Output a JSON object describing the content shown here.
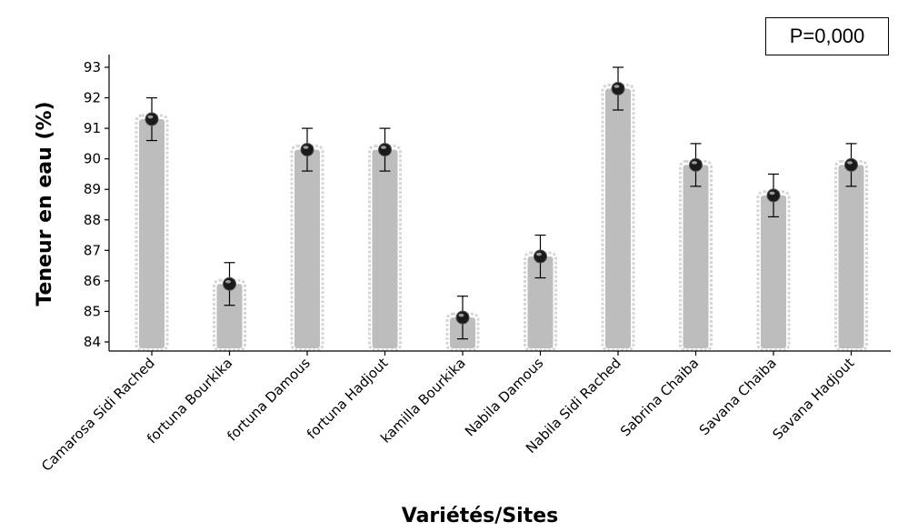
{
  "annotation": {
    "p_value": "P=0,000"
  },
  "chart_data": {
    "type": "bar",
    "title": "",
    "xlabel": "Variétés/Sites",
    "ylabel": "Teneur en eau (%)",
    "ylim": [
      83.8,
      93.4
    ],
    "yticks": [
      84,
      85,
      86,
      87,
      88,
      89,
      90,
      91,
      92,
      93
    ],
    "categories": [
      "Camarosa Sidi Rached",
      "fortuna Bourkika",
      "fortuna Damous",
      "fortuna Hadjout",
      "kamilla Bourkika",
      "Nabila Damous",
      "Nabila Sidi Rached",
      "Sabrina Chaiba",
      "Savana Chaiba",
      "Savana Hadjout"
    ],
    "values": [
      91.3,
      85.9,
      90.3,
      90.3,
      84.8,
      86.8,
      92.3,
      89.8,
      88.8,
      89.8
    ],
    "error_low": [
      90.6,
      85.2,
      89.6,
      89.6,
      84.1,
      86.1,
      91.6,
      89.1,
      88.1,
      89.1
    ],
    "error_high": [
      92.0,
      86.6,
      91.0,
      91.0,
      85.5,
      87.5,
      93.0,
      90.5,
      89.5,
      90.5
    ],
    "colors": {
      "bar": "#bdbdbd",
      "bar_outline": "#d6d6d6",
      "point": "#1a1a1a"
    },
    "grid": false
  }
}
